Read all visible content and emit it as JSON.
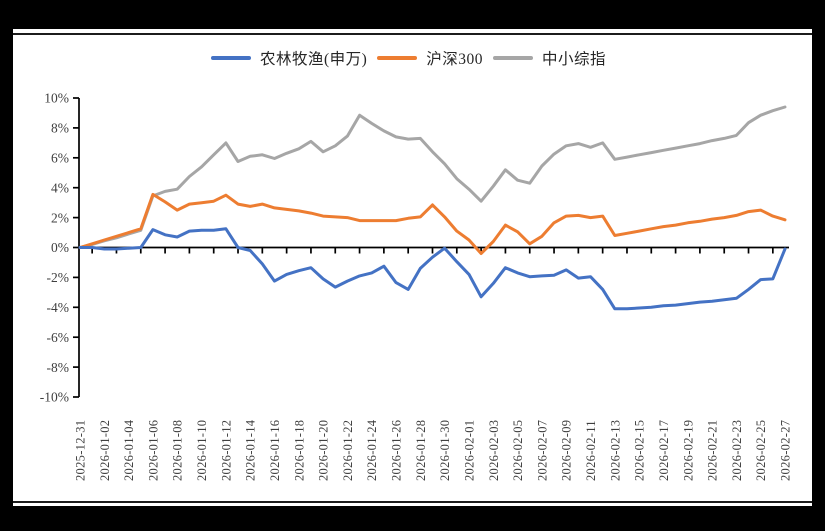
{
  "chart_data": {
    "type": "line",
    "title": "",
    "legend_position": "top-center",
    "grid": false,
    "unit": "percent",
    "ylim_pct": [
      -10,
      10
    ],
    "y_ticks": [
      "10%",
      "8%",
      "6%",
      "4%",
      "2%",
      "0%",
      "-2%",
      "-4%",
      "-6%",
      "-8%",
      "-10%"
    ],
    "x_tick_labels": [
      "2025-12-31",
      "2026-01-02",
      "2026-01-04",
      "2026-01-06",
      "2026-01-08",
      "2026-01-10",
      "2026-01-12",
      "2026-01-14",
      "2026-01-16",
      "2026-01-18",
      "2026-01-20",
      "2026-01-22",
      "2026-01-24",
      "2026-01-26",
      "2026-01-28",
      "2026-01-30",
      "2026-02-01",
      "2026-02-03",
      "2026-02-05",
      "2026-02-07",
      "2026-02-09",
      "2026-02-11",
      "2026-02-13",
      "2026-02-15",
      "2026-02-17",
      "2026-02-19",
      "2026-02-21",
      "2026-02-23",
      "2026-02-25",
      "2026-02-27"
    ],
    "x": [
      "2025-12-31",
      "2026-01-01",
      "2026-01-02",
      "2026-01-03",
      "2026-01-04",
      "2026-01-05",
      "2026-01-06",
      "2026-01-07",
      "2026-01-08",
      "2026-01-09",
      "2026-01-10",
      "2026-01-11",
      "2026-01-12",
      "2026-01-13",
      "2026-01-14",
      "2026-01-15",
      "2026-01-16",
      "2026-01-17",
      "2026-01-18",
      "2026-01-19",
      "2026-01-20",
      "2026-01-21",
      "2026-01-22",
      "2026-01-23",
      "2026-01-24",
      "2026-01-25",
      "2026-01-26",
      "2026-01-27",
      "2026-01-28",
      "2026-01-29",
      "2026-01-30",
      "2026-01-31",
      "2026-02-01",
      "2026-02-02",
      "2026-02-03",
      "2026-02-04",
      "2026-02-05",
      "2026-02-06",
      "2026-02-07",
      "2026-02-08",
      "2026-02-09",
      "2026-02-10",
      "2026-02-11",
      "2026-02-12",
      "2026-02-13",
      "2026-02-14",
      "2026-02-15",
      "2026-02-16",
      "2026-02-17",
      "2026-02-18",
      "2026-02-19",
      "2026-02-20",
      "2026-02-21",
      "2026-02-22",
      "2026-02-23",
      "2026-02-24",
      "2026-02-25",
      "2026-02-26",
      "2026-02-27"
    ],
    "series": [
      {
        "name": "农林牧渔(申万)",
        "color": "#4472C4",
        "values": [
          0,
          0,
          -0.1,
          -0.1,
          -0.05,
          0,
          1.2,
          0.85,
          0.7,
          1.1,
          1.15,
          1.15,
          1.25,
          0,
          -0.2,
          -1.1,
          -2.25,
          -1.8,
          -1.55,
          -1.35,
          -2.1,
          -2.65,
          -2.25,
          -1.9,
          -1.7,
          -1.25,
          -2.35,
          -2.8,
          -1.4,
          -0.65,
          -0.05,
          -0.95,
          -1.8,
          -3.3,
          -2.4,
          -1.35,
          -1.7,
          -1.95,
          -1.9,
          -1.85,
          -1.5,
          -2.05,
          -1.95,
          -2.8,
          -4.1,
          -4.1,
          -4.05,
          -4,
          -3.9,
          -3.85,
          -3.75,
          -3.65,
          -3.6,
          -3.5,
          -3.4,
          -2.8,
          -2.15,
          -2.1,
          -0.1
        ]
      },
      {
        "name": "沪深300",
        "color": "#ED7D31",
        "values": [
          0,
          0.25,
          0.5,
          0.75,
          1,
          1.25,
          3.55,
          3.05,
          2.5,
          2.9,
          3,
          3.1,
          3.5,
          2.9,
          2.75,
          2.9,
          2.65,
          2.55,
          2.45,
          2.3,
          2.1,
          2.05,
          2,
          1.8,
          1.8,
          1.8,
          1.8,
          1.95,
          2.05,
          2.85,
          2.05,
          1.1,
          0.5,
          -0.4,
          0.4,
          1.5,
          1.05,
          0.25,
          0.75,
          1.65,
          2.1,
          2.15,
          2,
          2.1,
          0.8,
          0.95,
          1.1,
          1.25,
          1.4,
          1.5,
          1.65,
          1.75,
          1.9,
          2,
          2.15,
          2.4,
          2.5,
          2.1,
          1.85
        ]
      },
      {
        "name": "中小综指",
        "color": "#A6A6A6",
        "values": [
          0,
          0.2,
          0.45,
          0.65,
          0.9,
          1.15,
          3.45,
          3.75,
          3.9,
          4.75,
          5.4,
          6.2,
          7,
          5.75,
          6.1,
          6.2,
          5.95,
          6.3,
          6.6,
          7.1,
          6.4,
          6.8,
          7.45,
          8.85,
          8.3,
          7.8,
          7.4,
          7.25,
          7.3,
          6.4,
          5.6,
          4.6,
          3.9,
          3.1,
          4.1,
          5.2,
          4.5,
          4.3,
          5.45,
          6.25,
          6.8,
          6.95,
          6.7,
          7,
          5.9,
          6.05,
          6.2,
          6.35,
          6.5,
          6.65,
          6.8,
          6.95,
          7.15,
          7.3,
          7.5,
          8.35,
          8.85,
          9.15,
          9.4
        ]
      }
    ],
    "axis_color": "#000000",
    "label_color": "#3f3f3f"
  }
}
